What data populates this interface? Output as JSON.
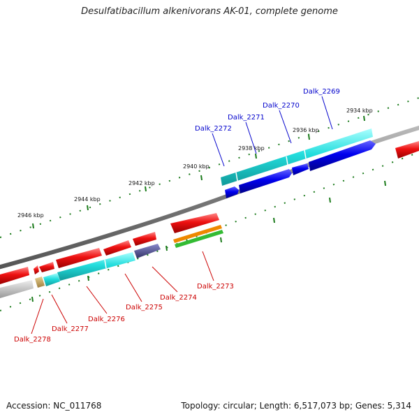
{
  "title": "Desulfatibacillum alkenivorans AK-01, complete genome",
  "footer": {
    "accession": "Accession: NC_011768",
    "summary": "Topology: circular; Length: 6,517,073 bp; Genes: 5,314"
  },
  "colors": {
    "backbone": "#808080",
    "tick": "#1a7a1a",
    "gene_red": "#ee1111",
    "gene_blue": "#0000ee",
    "gene_cyan": "#22dddd",
    "gene_gray": "#bbbbbb",
    "gene_tan": "#c8a860",
    "gene_orange": "#ee8800",
    "gene_green": "#33bb33",
    "gene_navy": "#444488",
    "label_blue": "#0000cc",
    "label_red": "#cc0000"
  },
  "kbp_labels": [
    "2934 kbp",
    "2936 kbp",
    "2938 kbp",
    "2940 kbp",
    "2942 kbp",
    "2944 kbp",
    "2946 kbp"
  ],
  "gene_labels_top": [
    "Dalk_2269",
    "Dalk_2270",
    "Dalk_2271",
    "Dalk_2272"
  ],
  "gene_labels_bottom": [
    "Dalk_2273",
    "Dalk_2274",
    "Dalk_2275",
    "Dalk_2276",
    "Dalk_2277",
    "Dalk_2278"
  ]
}
